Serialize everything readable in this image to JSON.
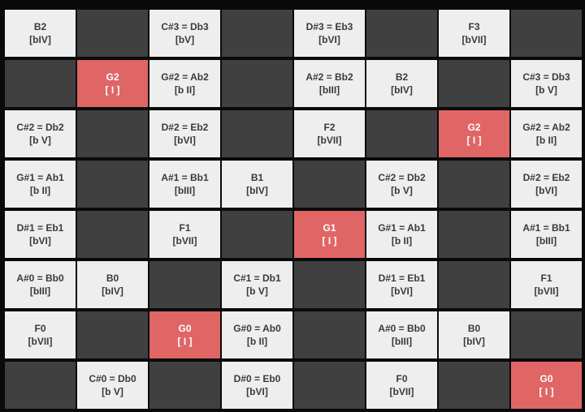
{
  "grid": {
    "rows": [
      [
        {
          "note": "B2",
          "degree": "[bIV]"
        },
        null,
        {
          "note": "C#3 = Db3",
          "degree": "[bV]"
        },
        null,
        {
          "note": "D#3 = Eb3",
          "degree": "[bVI]"
        },
        null,
        {
          "note": "F3",
          "degree": "[bVII]"
        },
        null
      ],
      [
        null,
        {
          "note": "G2",
          "degree": "[ I ]",
          "color": "#e06666"
        },
        {
          "note": "G#2 = Ab2",
          "degree": "[b II]"
        },
        null,
        {
          "note": "A#2 = Bb2",
          "degree": "[bIII]"
        },
        {
          "note": "B2",
          "degree": "[bIV]"
        },
        null,
        {
          "note": "C#3 = Db3",
          "degree": "[b V]"
        }
      ],
      [
        {
          "note": "C#2 = Db2",
          "degree": "[b V]"
        },
        null,
        {
          "note": "D#2 = Eb2",
          "degree": "[bVI]"
        },
        null,
        {
          "note": "F2",
          "degree": "[bVII]"
        },
        null,
        {
          "note": "G2",
          "degree": "[ I ]",
          "color": "#e06666"
        },
        {
          "note": "G#2 = Ab2",
          "degree": "[b II]"
        }
      ],
      [
        {
          "note": "G#1 = Ab1",
          "degree": "[b II]"
        },
        null,
        {
          "note": "A#1 = Bb1",
          "degree": "[bIII]"
        },
        {
          "note": "B1",
          "degree": "[bIV]"
        },
        null,
        {
          "note": "C#2 = Db2",
          "degree": "[b V]"
        },
        null,
        {
          "note": "D#2 = Eb2",
          "degree": "[bVI]"
        }
      ],
      [
        {
          "note": "D#1 = Eb1",
          "degree": "[bVI]"
        },
        null,
        {
          "note": "F1",
          "degree": "[bVII]"
        },
        null,
        {
          "note": "G1",
          "degree": "[ I ]",
          "color": "#e06666"
        },
        {
          "note": "G#1 = Ab1",
          "degree": "[b II]"
        },
        null,
        {
          "note": "A#1 = Bb1",
          "degree": "[bIII]"
        }
      ],
      [
        {
          "note": "A#0 = Bb0",
          "degree": "[bIII]"
        },
        {
          "note": "B0",
          "degree": "[bIV]"
        },
        null,
        {
          "note": "C#1 = Db1",
          "degree": "[b V]"
        },
        null,
        {
          "note": "D#1 = Eb1",
          "degree": "[bVI]"
        },
        null,
        {
          "note": "F1",
          "degree": "[bVII]"
        }
      ],
      [
        {
          "note": "F0",
          "degree": "[bVII]"
        },
        null,
        {
          "note": "G0",
          "degree": "[ I ]",
          "color": "#e06666"
        },
        {
          "note": "G#0 = Ab0",
          "degree": "[b II]"
        },
        null,
        {
          "note": "A#0 = Bb0",
          "degree": "[bIII]"
        },
        {
          "note": "B0",
          "degree": "[bIV]"
        },
        null
      ],
      [
        null,
        {
          "note": "C#0 = Db0",
          "degree": "[b V]"
        },
        null,
        {
          "note": "D#0 = Eb0",
          "degree": "[bVI]"
        },
        null,
        {
          "note": "F0",
          "degree": "[bVII]"
        },
        null,
        {
          "note": "G0",
          "degree": "[ I ]",
          "color": "#e06666"
        }
      ]
    ]
  }
}
